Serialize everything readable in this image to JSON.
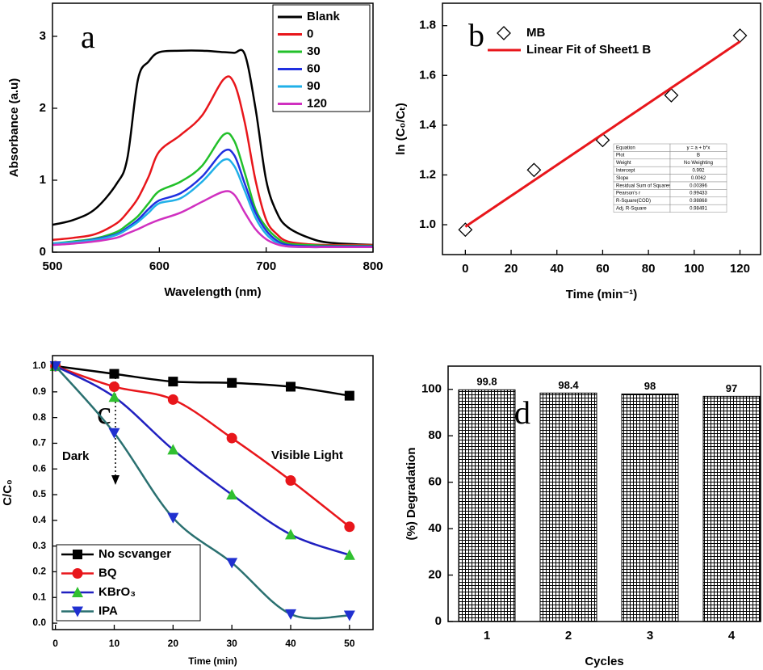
{
  "chart_data": [
    {
      "type": "line",
      "label": "a",
      "xlabel": "Wavelength (nm)",
      "ylabel": "Absorbance (a.u)",
      "x": [
        500,
        520,
        540,
        560,
        570,
        580,
        590,
        600,
        620,
        640,
        660,
        670,
        680,
        690,
        700,
        710,
        720,
        740,
        760,
        800
      ],
      "xlim": [
        500,
        800
      ],
      "ylim": [
        0,
        3.46
      ],
      "xticks": [
        500,
        600,
        700,
        800
      ],
      "yticks": [
        0,
        1,
        2,
        3
      ],
      "legend": "upper right",
      "series": [
        {
          "name": "Blank",
          "color": "#000000",
          "values": [
            0.38,
            0.45,
            0.6,
            0.95,
            1.3,
            2.4,
            2.65,
            2.78,
            2.8,
            2.8,
            2.78,
            2.77,
            2.75,
            2.0,
            1.0,
            0.55,
            0.35,
            0.2,
            0.13,
            0.1
          ]
        },
        {
          "name": "0",
          "color": "#e8161b",
          "values": [
            0.17,
            0.2,
            0.25,
            0.4,
            0.55,
            0.75,
            1.05,
            1.4,
            1.63,
            1.9,
            2.4,
            2.35,
            1.8,
            1.0,
            0.45,
            0.25,
            0.15,
            0.11,
            0.1,
            0.1
          ]
        },
        {
          "name": "30",
          "color": "#22c02a",
          "values": [
            0.12,
            0.15,
            0.19,
            0.28,
            0.38,
            0.5,
            0.68,
            0.85,
            0.98,
            1.2,
            1.63,
            1.55,
            1.1,
            0.6,
            0.35,
            0.2,
            0.12,
            0.1,
            0.09,
            0.09
          ]
        },
        {
          "name": "60",
          "color": "#2030e0",
          "values": [
            0.12,
            0.14,
            0.18,
            0.25,
            0.34,
            0.45,
            0.6,
            0.72,
            0.82,
            1.05,
            1.4,
            1.35,
            0.95,
            0.55,
            0.3,
            0.16,
            0.1,
            0.08,
            0.08,
            0.08
          ]
        },
        {
          "name": "90",
          "color": "#20b0e8",
          "values": [
            0.12,
            0.14,
            0.17,
            0.24,
            0.32,
            0.42,
            0.55,
            0.68,
            0.75,
            0.98,
            1.28,
            1.2,
            0.85,
            0.48,
            0.25,
            0.13,
            0.08,
            0.07,
            0.07,
            0.07
          ]
        },
        {
          "name": "120",
          "color": "#d030c0",
          "values": [
            0.1,
            0.12,
            0.15,
            0.2,
            0.26,
            0.32,
            0.39,
            0.45,
            0.55,
            0.7,
            0.84,
            0.8,
            0.55,
            0.32,
            0.18,
            0.11,
            0.08,
            0.07,
            0.07,
            0.07
          ]
        }
      ]
    },
    {
      "type": "scatter",
      "label": "b",
      "xlabel": "Time (min⁻¹)",
      "ylabel": "ln (C₀/Cₜ)",
      "xlim": [
        -10,
        129
      ],
      "ylim": [
        0.88,
        1.89
      ],
      "xticks": [
        0,
        20,
        40,
        60,
        80,
        100,
        120
      ],
      "yticks": [
        {
          "value": 1,
          "label": "1.0"
        },
        1.2,
        1.4,
        1.6,
        1.8
      ],
      "legend": "upper left",
      "series": [
        {
          "name": "MB",
          "kind": "scatter",
          "marker": "diamond",
          "color": "#000000",
          "x": [
            0,
            30,
            60,
            90,
            120
          ],
          "values": [
            0.98,
            1.22,
            1.34,
            1.52,
            1.76
          ]
        },
        {
          "name": "Linear Fit of Sheet1 B",
          "kind": "line",
          "color": "#e8161b",
          "x": [
            0,
            120
          ],
          "values": [
            0.992,
            1.736
          ]
        }
      ],
      "fit_table": [
        [
          "Equation",
          "y = a + b*x"
        ],
        [
          "Plot",
          "B"
        ],
        [
          "Weight",
          "No Weighting"
        ],
        [
          "Intercept",
          "0.992"
        ],
        [
          "Slope",
          "0.0062"
        ],
        [
          "Residual Sum of Squares",
          "0.00396"
        ],
        [
          "Pearson's r",
          "0.99433"
        ],
        [
          "R-Square(COD)",
          "0.98868"
        ],
        [
          "Adj. R-Square",
          "0.98491"
        ]
      ]
    },
    {
      "type": "line",
      "label": "c",
      "xlabel": "Time (min)",
      "ylabel": "C/C₀",
      "x": [
        0,
        10,
        20,
        30,
        40,
        50
      ],
      "xlim": [
        -0.5,
        54
      ],
      "ylim": [
        -0.025,
        1.041
      ],
      "xticks": [
        0,
        10,
        20,
        30,
        40,
        50
      ],
      "yticks": [
        {
          "value": 0,
          "label": "0.0"
        },
        0.1,
        0.2,
        0.3,
        0.4,
        0.5,
        0.6,
        0.7,
        0.8,
        0.9,
        {
          "value": 1,
          "label": "1.0"
        }
      ],
      "annotations": [
        "Dark",
        "Visible Light"
      ],
      "legend": "lower left",
      "series": [
        {
          "name": "No scvanger",
          "color": "#000000",
          "marker": "square",
          "marker_color": "#000000",
          "values": [
            1.0,
            0.97,
            0.94,
            0.935,
            0.92,
            0.885
          ]
        },
        {
          "name": "BQ",
          "color": "#e8161b",
          "marker": "circle",
          "marker_color": "#e8161b",
          "values": [
            1.0,
            0.92,
            0.87,
            0.72,
            0.555,
            0.375
          ]
        },
        {
          "name": "KBrO₃",
          "color": "#2020c0",
          "marker": "triangle-up",
          "marker_color": "#30c030",
          "values": [
            1.0,
            0.88,
            0.675,
            0.5,
            0.345,
            0.265
          ]
        },
        {
          "name": "IPA",
          "color": "#2a7070",
          "marker": "triangle-down",
          "marker_color": "#2030d0",
          "values": [
            1.0,
            0.74,
            0.41,
            0.235,
            0.035,
            0.03
          ]
        }
      ]
    },
    {
      "type": "bar",
      "label": "d",
      "xlabel": "Cycles",
      "ylabel": "(%) Degradation",
      "categories": [
        "1",
        "2",
        "3",
        "4"
      ],
      "values": [
        99.8,
        98.4,
        98,
        97
      ],
      "ylim": [
        0,
        110
      ],
      "yticks": [
        0,
        20,
        40,
        60,
        80,
        100
      ]
    }
  ]
}
